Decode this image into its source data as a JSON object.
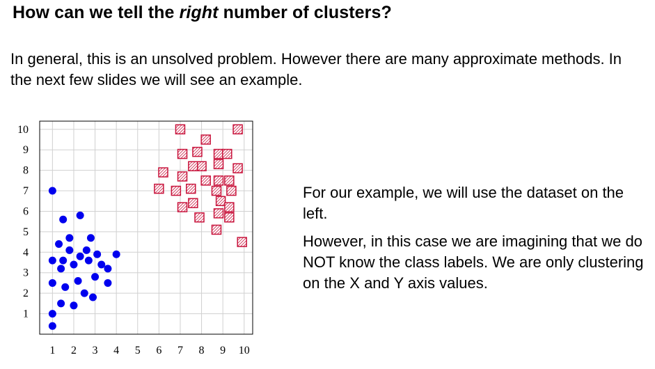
{
  "slide": {
    "title_pre": "How can we tell the ",
    "title_em": "right",
    "title_post": " number of clusters?",
    "intro": "In general, this is an unsolved problem. However there are many approximate methods. In the next few slides we will see an example.",
    "side_p1": "For our example, we will use the dataset on the left.",
    "side_p2": "However, in this case we are imagining that we do NOT know the class labels. We are only clustering on the X and Y axis values."
  },
  "colors": {
    "circle_fill": "#0000ee",
    "square_stroke": "#c8143c",
    "square_hatch": "#c8143c",
    "grid": "#d0d0d0",
    "frame": "#000000"
  },
  "chart_data": {
    "type": "scatter",
    "title": "",
    "xlabel": "",
    "ylabel": "",
    "xlim": [
      0.4,
      10.4
    ],
    "ylim": [
      0,
      10.4
    ],
    "x_ticks": [
      1,
      2,
      3,
      4,
      5,
      6,
      7,
      8,
      9,
      10
    ],
    "y_ticks": [
      1,
      2,
      3,
      4,
      5,
      6,
      7,
      8,
      9,
      10
    ],
    "grid": true,
    "series": [
      {
        "marker": "circle",
        "points": [
          [
            1.0,
            7.0
          ],
          [
            1.5,
            5.6
          ],
          [
            2.3,
            5.8
          ],
          [
            1.3,
            4.4
          ],
          [
            1.8,
            4.7
          ],
          [
            2.8,
            4.7
          ],
          [
            1.8,
            4.1
          ],
          [
            2.6,
            4.1
          ],
          [
            2.3,
            3.8
          ],
          [
            3.1,
            3.9
          ],
          [
            4.0,
            3.9
          ],
          [
            1.0,
            3.6
          ],
          [
            1.5,
            3.6
          ],
          [
            2.7,
            3.6
          ],
          [
            1.4,
            3.2
          ],
          [
            3.3,
            3.4
          ],
          [
            2.0,
            3.4
          ],
          [
            3.6,
            3.2
          ],
          [
            3.0,
            2.8
          ],
          [
            2.2,
            2.6
          ],
          [
            1.0,
            2.5
          ],
          [
            1.6,
            2.3
          ],
          [
            3.6,
            2.5
          ],
          [
            2.5,
            2.0
          ],
          [
            2.9,
            1.8
          ],
          [
            1.4,
            1.5
          ],
          [
            2.0,
            1.4
          ],
          [
            1.0,
            1.0
          ],
          [
            1.0,
            0.4
          ]
        ]
      },
      {
        "marker": "hatched-square",
        "points": [
          [
            7.0,
            10.0
          ],
          [
            9.7,
            10.0
          ],
          [
            8.2,
            9.5
          ],
          [
            7.8,
            8.9
          ],
          [
            7.1,
            8.8
          ],
          [
            8.8,
            8.8
          ],
          [
            9.2,
            8.8
          ],
          [
            8.0,
            8.2
          ],
          [
            6.2,
            7.9
          ],
          [
            7.6,
            8.2
          ],
          [
            8.8,
            8.3
          ],
          [
            9.7,
            8.1
          ],
          [
            7.1,
            7.7
          ],
          [
            8.2,
            7.5
          ],
          [
            8.8,
            7.5
          ],
          [
            9.3,
            7.5
          ],
          [
            6.0,
            7.1
          ],
          [
            6.8,
            7.0
          ],
          [
            7.5,
            7.1
          ],
          [
            8.7,
            7.0
          ],
          [
            9.4,
            7.0
          ],
          [
            7.6,
            6.4
          ],
          [
            8.9,
            6.5
          ],
          [
            7.1,
            6.2
          ],
          [
            9.3,
            6.2
          ],
          [
            7.9,
            5.7
          ],
          [
            8.8,
            5.9
          ],
          [
            9.3,
            5.7
          ],
          [
            8.7,
            5.1
          ],
          [
            9.9,
            4.5
          ]
        ]
      }
    ]
  }
}
